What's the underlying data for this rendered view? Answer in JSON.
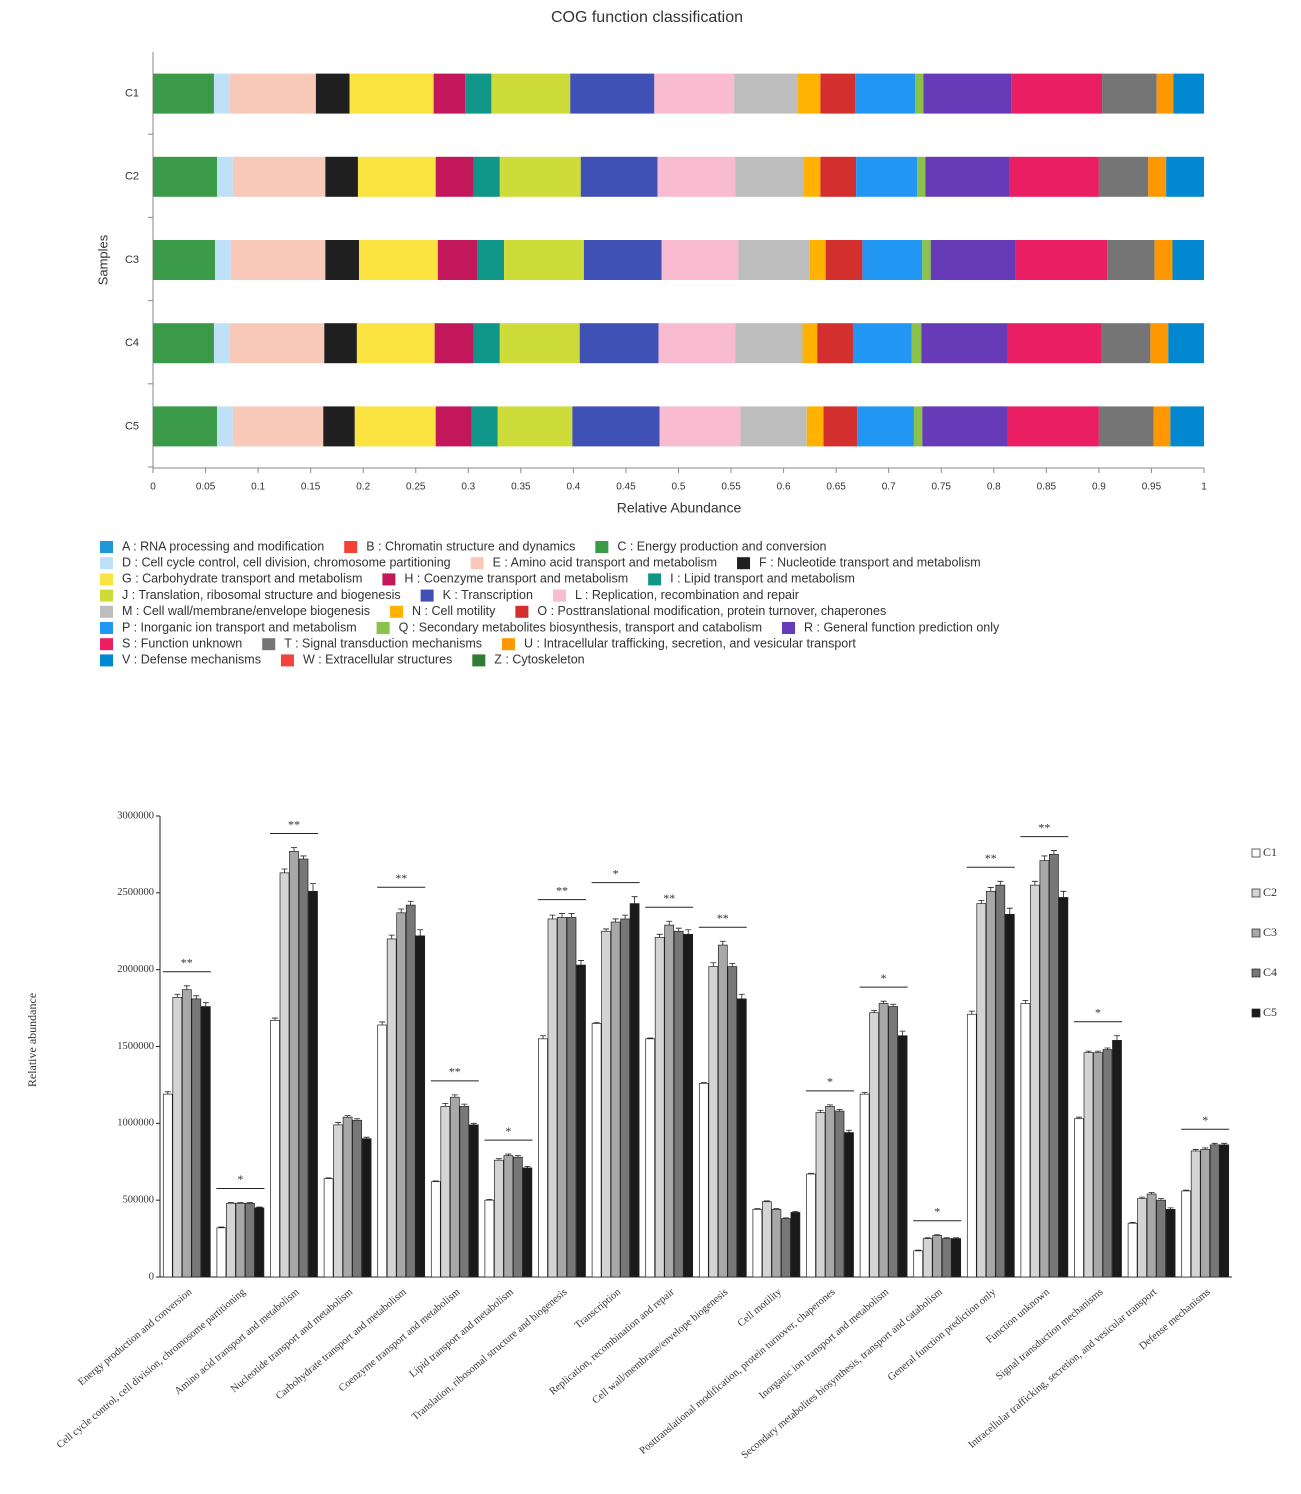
{
  "chart_data": [
    {
      "type": "stacked-bar",
      "orientation": "horizontal",
      "title": "COG function classification",
      "x_label": "Relative Abundance",
      "y_label": "Samples",
      "categories": [
        "C1",
        "C2",
        "C3",
        "C4",
        "C5"
      ],
      "xlim": [
        0,
        1
      ],
      "xticks": [
        0,
        0.05,
        0.1,
        0.15,
        0.2,
        0.25,
        0.3,
        0.35,
        0.4,
        0.45,
        0.5,
        0.55,
        0.6,
        0.65,
        0.7,
        0.75,
        0.8,
        0.85,
        0.9,
        0.95,
        1
      ],
      "series": [
        {
          "name": "A : RNA processing and modification",
          "color": "#2196d9",
          "values": [
            0,
            0,
            0,
            0,
            0
          ]
        },
        {
          "name": "B : Chromatin structure and dynamics",
          "color": "#f44336",
          "values": [
            0,
            0,
            0,
            0,
            0
          ]
        },
        {
          "name": "C : Energy production and conversion",
          "color": "#3a9a47",
          "values": [
            0.058,
            0.061,
            0.059,
            0.058,
            0.061
          ]
        },
        {
          "name": "D : Cell cycle control, cell division, chromosome partitioning",
          "color": "#bfe1f7",
          "values": [
            0.015,
            0.015,
            0.015,
            0.015,
            0.015
          ]
        },
        {
          "name": "E : Amino acid transport and metabolism",
          "color": "#f8c9b9",
          "values": [
            0.082,
            0.088,
            0.09,
            0.09,
            0.086
          ]
        },
        {
          "name": "F : Nucleotide transport and metabolism",
          "color": "#1f1f1f",
          "values": [
            0.032,
            0.031,
            0.032,
            0.031,
            0.03
          ]
        },
        {
          "name": "G : Carbohydrate transport and metabolism",
          "color": "#fbe342",
          "values": [
            0.08,
            0.074,
            0.075,
            0.074,
            0.077
          ]
        },
        {
          "name": "H : Coenzyme transport and metabolism",
          "color": "#c2185b",
          "values": [
            0.03,
            0.036,
            0.038,
            0.037,
            0.034
          ]
        },
        {
          "name": "I : Lipid transport and metabolism",
          "color": "#0f9688",
          "values": [
            0.025,
            0.025,
            0.025,
            0.025,
            0.025
          ]
        },
        {
          "name": "J : Translation, ribosomal structure and biogenesis",
          "color": "#cddc39",
          "values": [
            0.075,
            0.077,
            0.076,
            0.076,
            0.071
          ]
        },
        {
          "name": "K : Transcription",
          "color": "#3f51b5",
          "values": [
            0.08,
            0.073,
            0.074,
            0.075,
            0.083
          ]
        },
        {
          "name": "L : Replication, recombination and repair",
          "color": "#f8bbd0",
          "values": [
            0.076,
            0.074,
            0.073,
            0.073,
            0.077
          ]
        },
        {
          "name": "M : Cell wall/membrane/envelope biogenesis",
          "color": "#bdbdbd",
          "values": [
            0.06,
            0.065,
            0.068,
            0.064,
            0.063
          ]
        },
        {
          "name": "N : Cell motility",
          "color": "#ffb300",
          "values": [
            0.022,
            0.016,
            0.015,
            0.014,
            0.016
          ]
        },
        {
          "name": "O : Posttranslational modification, protein turnover, chaperones",
          "color": "#d32f2f",
          "values": [
            0.033,
            0.034,
            0.035,
            0.034,
            0.032
          ]
        },
        {
          "name": "P : Inorganic ion transport and metabolism",
          "color": "#2196f3",
          "values": [
            0.057,
            0.058,
            0.057,
            0.056,
            0.054
          ]
        },
        {
          "name": "Q : Secondary metabolites biosynthesis, transport and catabolism",
          "color": "#8bc34a",
          "values": [
            0.008,
            0.008,
            0.008,
            0.009,
            0.008
          ]
        },
        {
          "name": "R : General function prediction only",
          "color": "#673ab7",
          "values": [
            0.084,
            0.08,
            0.081,
            0.082,
            0.081
          ]
        },
        {
          "name": "S : Function unknown",
          "color": "#e91e63",
          "values": [
            0.086,
            0.085,
            0.087,
            0.089,
            0.087
          ]
        },
        {
          "name": "T : Signal transduction mechanisms",
          "color": "#757575",
          "values": [
            0.052,
            0.047,
            0.045,
            0.047,
            0.052
          ]
        },
        {
          "name": "U : Intracellular trafficking, secretion, and vesicular transport",
          "color": "#ff9800",
          "values": [
            0.016,
            0.017,
            0.017,
            0.017,
            0.016
          ]
        },
        {
          "name": "V : Defense mechanisms",
          "color": "#0288d1",
          "values": [
            0.029,
            0.036,
            0.03,
            0.034,
            0.032
          ]
        },
        {
          "name": "W : Extracellular structures",
          "color": "#f4433f",
          "values": [
            0,
            0,
            0,
            0,
            0
          ]
        },
        {
          "name": "Z : Cytoskeleton",
          "color": "#2e7d32",
          "values": [
            0,
            0,
            0,
            0,
            0
          ]
        }
      ]
    },
    {
      "type": "bar",
      "y_label": "Relative abundance",
      "categories": [
        "Energy production and conversion",
        "Cell cycle control, cell division, chromosome partitioning",
        "Amino acid transport and metabolism",
        "Nucleotide transport and metabolism",
        "Carbohydrate transport and metabolism",
        "Coenzyme transport and metabolism",
        "Lipid transport and metabolism",
        "Translation, ribosomal structure and biogenesis",
        "Transcription",
        "Replication, recombination and repair",
        "Cell wall/membrane/envelope biogenesis",
        "Cell motility",
        "Posttranslational modification, protein turnover, chaperones",
        "Inorganic ion transport and metabolism",
        "Secondary metabolites biosynthesis, transport and catabolism",
        "General function prediction only",
        "Function unknown",
        "Signal transduction mechanisms",
        "Intracellular trafficking, secretion, and vesicular transport",
        "Defense mechanisms"
      ],
      "ylim": [
        0,
        3000000
      ],
      "yticks": [
        0,
        500000,
        1000000,
        1500000,
        2000000,
        2500000,
        3000000
      ],
      "significance": [
        "**",
        "*",
        "**",
        null,
        "**",
        "**",
        "*",
        "**",
        "*",
        "**",
        "**",
        null,
        "*",
        "*",
        "*",
        "**",
        "**",
        "*",
        null,
        "*"
      ],
      "series": [
        {
          "name": "C1",
          "color": "#ffffff",
          "values": [
            1190000,
            320000,
            1670000,
            640000,
            1640000,
            620000,
            500000,
            1550000,
            1650000,
            1550000,
            1260000,
            440000,
            670000,
            1190000,
            170000,
            1710000,
            1780000,
            1030000,
            350000,
            560000
          ],
          "errors": [
            15000,
            5000,
            15000,
            5000,
            20000,
            5000,
            5000,
            20000,
            5000,
            5000,
            5000,
            5000,
            5000,
            10000,
            5000,
            20000,
            20000,
            10000,
            5000,
            5000
          ]
        },
        {
          "name": "C2",
          "color": "#d4d4d4",
          "values": [
            1820000,
            480000,
            2630000,
            990000,
            2200000,
            1110000,
            760000,
            2330000,
            2250000,
            2210000,
            2020000,
            490000,
            1070000,
            1720000,
            250000,
            2430000,
            2550000,
            1460000,
            510000,
            820000
          ],
          "errors": [
            20000,
            5000,
            25000,
            15000,
            25000,
            20000,
            10000,
            25000,
            15000,
            20000,
            25000,
            5000,
            15000,
            15000,
            5000,
            20000,
            25000,
            10000,
            10000,
            10000
          ]
        },
        {
          "name": "C3",
          "color": "#a8a8a8",
          "values": [
            1870000,
            480000,
            2770000,
            1040000,
            2370000,
            1170000,
            790000,
            2340000,
            2310000,
            2290000,
            2160000,
            440000,
            1110000,
            1780000,
            270000,
            2510000,
            2710000,
            1460000,
            540000,
            830000
          ],
          "errors": [
            25000,
            5000,
            25000,
            10000,
            25000,
            15000,
            10000,
            25000,
            20000,
            25000,
            25000,
            5000,
            10000,
            15000,
            5000,
            25000,
            30000,
            10000,
            10000,
            10000
          ]
        },
        {
          "name": "C4",
          "color": "#777777",
          "values": [
            1810000,
            480000,
            2720000,
            1020000,
            2420000,
            1110000,
            780000,
            2340000,
            2330000,
            2250000,
            2020000,
            380000,
            1080000,
            1760000,
            250000,
            2550000,
            2750000,
            1480000,
            500000,
            860000
          ],
          "errors": [
            20000,
            5000,
            20000,
            10000,
            25000,
            15000,
            10000,
            25000,
            25000,
            20000,
            20000,
            5000,
            10000,
            15000,
            5000,
            25000,
            25000,
            10000,
            10000,
            10000
          ]
        },
        {
          "name": "C5",
          "color": "#1a1a1a",
          "values": [
            1760000,
            450000,
            2510000,
            900000,
            2220000,
            990000,
            710000,
            2030000,
            2430000,
            2230000,
            1810000,
            420000,
            940000,
            1570000,
            250000,
            2360000,
            2470000,
            1540000,
            440000,
            860000
          ],
          "errors": [
            25000,
            5000,
            50000,
            10000,
            40000,
            10000,
            10000,
            30000,
            45000,
            30000,
            30000,
            5000,
            15000,
            30000,
            5000,
            40000,
            40000,
            30000,
            10000,
            10000
          ]
        }
      ]
    }
  ]
}
